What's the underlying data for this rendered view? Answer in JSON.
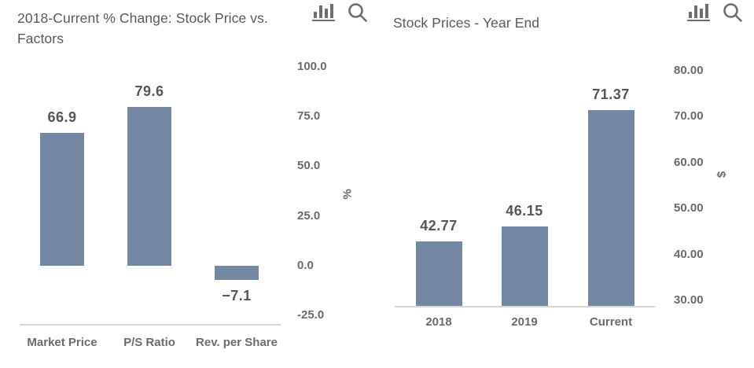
{
  "colors": {
    "bar": "#7588A3",
    "axis_line": "#d6d6d6",
    "title_text": "#595959",
    "tick_text": "#6b6b6b"
  },
  "chart_data": [
    {
      "type": "bar",
      "title": "2018-Current % Change: Stock Price vs. Factors",
      "categories": [
        "Market Price",
        "P/S Ratio",
        "Rev. per Share"
      ],
      "values": [
        66.9,
        79.6,
        -7.1
      ],
      "value_labels": [
        "66.9",
        "79.6",
        "−7.1"
      ],
      "xlabel": "",
      "ylabel": "%",
      "ylim": [
        -25,
        100
      ],
      "y_ticks": [
        {
          "value": 100,
          "label": "100.0"
        },
        {
          "value": 75,
          "label": "75.0"
        },
        {
          "value": 50,
          "label": "50.0"
        },
        {
          "value": 25,
          "label": "25.0"
        },
        {
          "value": 0,
          "label": "0.0"
        },
        {
          "value": -25,
          "label": "-25.0"
        }
      ],
      "y_axis_side": "right",
      "grid": "off",
      "legend": "none",
      "bar_color": "#7588A3",
      "toolbar": {
        "chart_type_icon": "bar-chart-icon",
        "search_icon": "magnifier-icon"
      }
    },
    {
      "type": "bar",
      "title": "Stock Prices - Year End",
      "categories": [
        "2018",
        "2019",
        "Current"
      ],
      "values": [
        42.77,
        46.15,
        71.37
      ],
      "value_labels": [
        "42.77",
        "46.15",
        "71.37"
      ],
      "xlabel": "",
      "ylabel": "$",
      "ylim": [
        30,
        80
      ],
      "y_ticks": [
        {
          "value": 80,
          "label": "80.00"
        },
        {
          "value": 70,
          "label": "70.00"
        },
        {
          "value": 60,
          "label": "60.00"
        },
        {
          "value": 50,
          "label": "50.00"
        },
        {
          "value": 40,
          "label": "40.00"
        },
        {
          "value": 30,
          "label": "30.00"
        }
      ],
      "y_axis_side": "right",
      "grid": "off",
      "legend": "none",
      "bar_color": "#7588A3",
      "toolbar": {
        "chart_type_icon": "bar-chart-icon",
        "search_icon": "magnifier-icon"
      }
    }
  ]
}
